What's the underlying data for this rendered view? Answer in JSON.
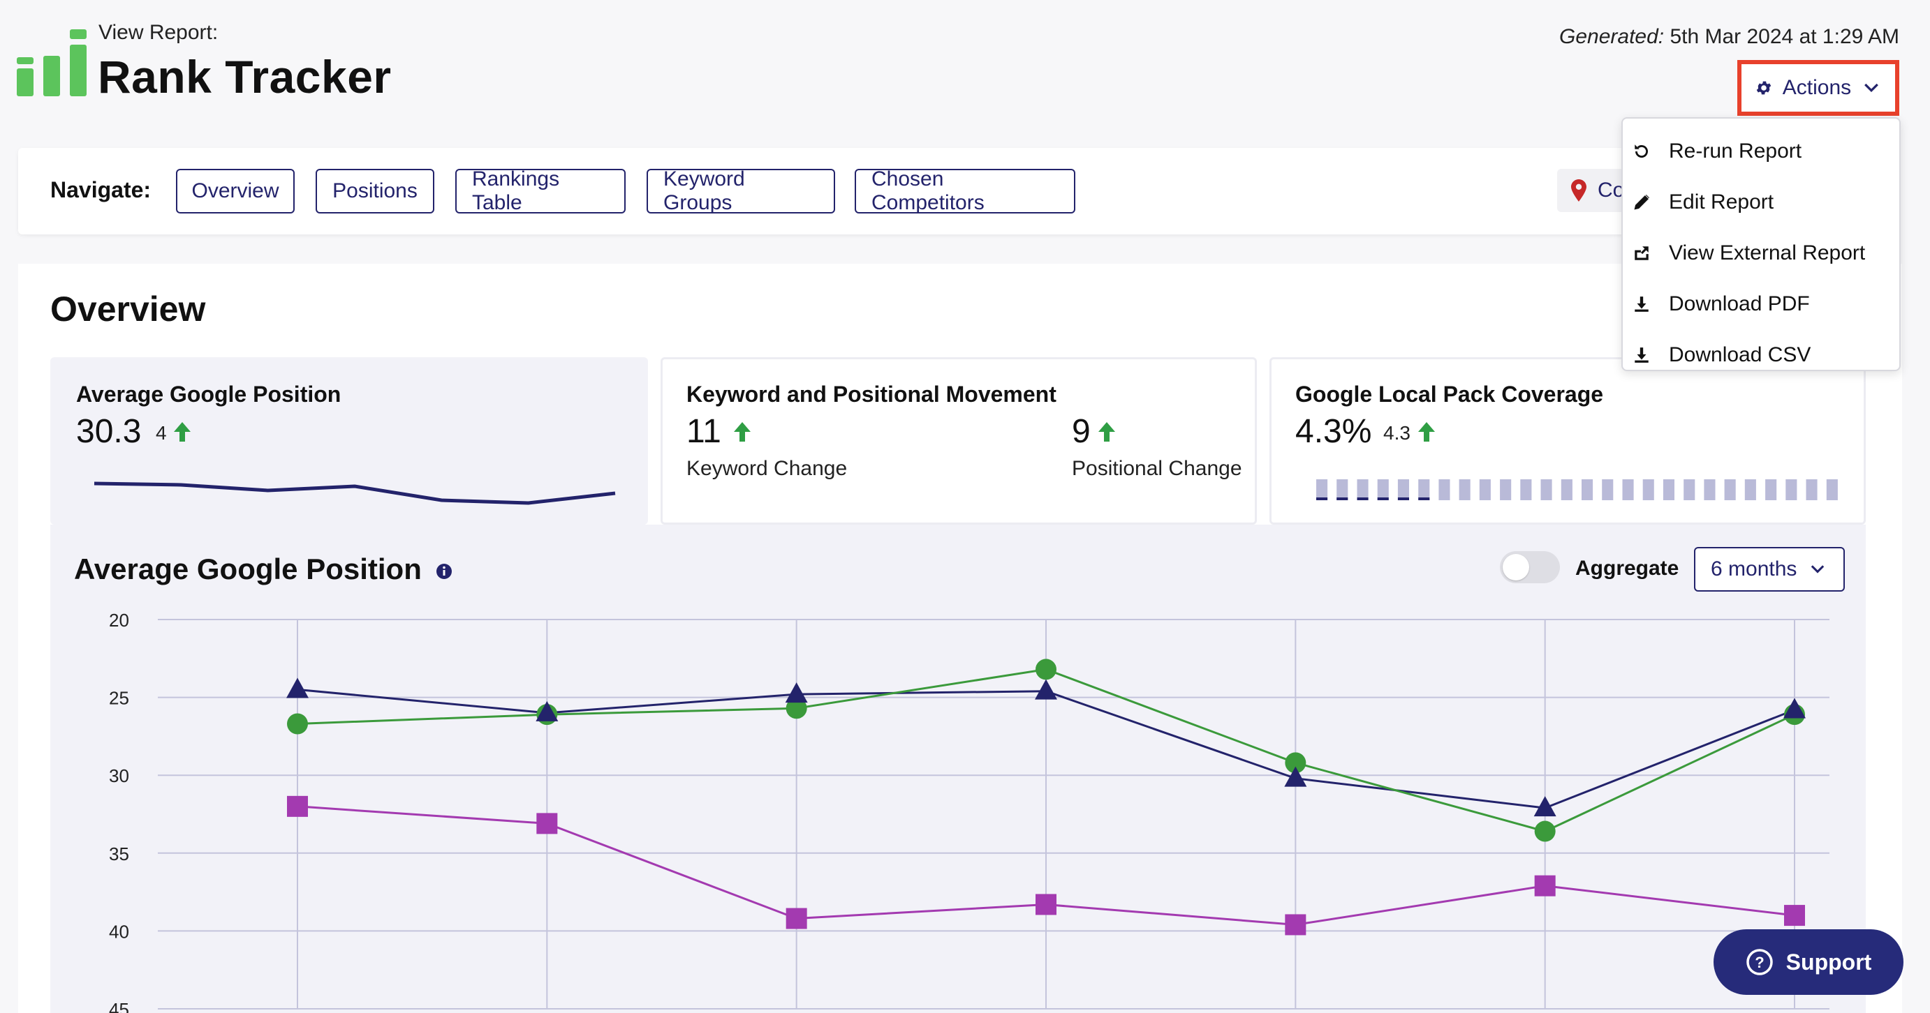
{
  "header": {
    "view_label": "View Report:",
    "title": "Rank Tracker",
    "generated_label": "Generated:",
    "generated_value": " 5th Mar 2024 at 1:29 AM",
    "actions_label": "Actions"
  },
  "actions_menu": [
    {
      "label": "Re-run Report",
      "icon": "rerun-icon"
    },
    {
      "label": "Edit Report",
      "icon": "pencil-icon"
    },
    {
      "label": "View External Report",
      "icon": "external-link-icon"
    },
    {
      "label": "Download PDF",
      "icon": "download-icon"
    },
    {
      "label": "Download CSV",
      "icon": "download-icon"
    }
  ],
  "navigate": {
    "label": "Navigate:",
    "buttons": [
      "Overview",
      "Positions",
      "Rankings Table",
      "Keyword Groups",
      "Chosen Competitors"
    ],
    "location_pill": "Co"
  },
  "overview": {
    "title": "Overview",
    "cards": {
      "avg_position": {
        "title": "Average Google Position",
        "value": "30.3",
        "change": "4"
      },
      "movement": {
        "title": "Keyword and Positional Movement",
        "keyword_value": "11",
        "keyword_label": "Keyword Change",
        "positional_value": "9",
        "positional_label": "Positional Change"
      },
      "local_pack": {
        "title": "Google Local Pack Coverage",
        "value": "4.3%",
        "change": "4.3"
      }
    },
    "sparkline": [
      29.4,
      29.5,
      29.9,
      29.6,
      30.6,
      30.8,
      30.1
    ],
    "coverage_bars": {
      "count": 26,
      "filled": [
        0,
        1,
        2,
        3,
        4,
        5
      ]
    }
  },
  "chart_section": {
    "title": "Average Google Position",
    "aggregate_label": "Aggregate",
    "aggregate_on": false,
    "range_label": "6 months"
  },
  "support": {
    "label": "Support"
  },
  "colors": {
    "navy": "#23236b",
    "green": "#3b9a3b",
    "purple": "#a33ab0",
    "highlight": "#e8412c",
    "up_arrow": "#2f9e44"
  },
  "chart_data": {
    "type": "line",
    "title": "Average Google Position",
    "x": [
      1,
      2,
      3,
      4,
      5,
      6,
      7
    ],
    "ylim": [
      20,
      45
    ],
    "y_reversed": true,
    "yticks": [
      20,
      25,
      30,
      35,
      40,
      45
    ],
    "grid": true,
    "series": [
      {
        "color": "#23236b",
        "marker": "triangle",
        "values": [
          24.5,
          26.0,
          24.8,
          24.6,
          30.2,
          32.1,
          25.8
        ]
      },
      {
        "color": "#3b9a3b",
        "marker": "circle",
        "values": [
          26.7,
          26.1,
          25.7,
          23.2,
          29.2,
          33.6,
          26.1
        ]
      },
      {
        "color": "#a33ab0",
        "marker": "square",
        "values": [
          32.0,
          33.1,
          39.2,
          38.3,
          39.6,
          37.1,
          39.0
        ]
      }
    ]
  }
}
